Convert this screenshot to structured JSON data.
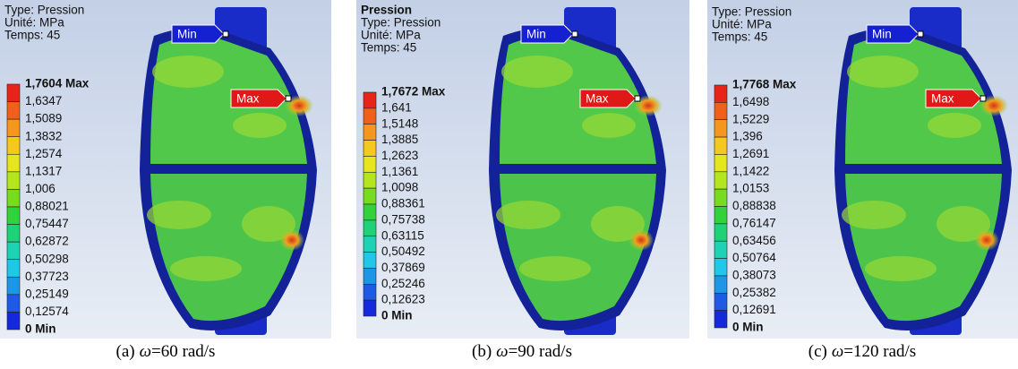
{
  "panels": [
    {
      "header": [
        "Type: Pression",
        "Unité: MPa",
        "Temps: 45"
      ],
      "legend": [
        "1,7604 Max",
        "1,6347",
        "1,5089",
        "1,3832",
        "1,2574",
        "1,1317",
        "1,006",
        "0,88021",
        "0,75447",
        "0,62872",
        "0,50298",
        "0,37723",
        "0,25149",
        "0,12574",
        "0 Min"
      ],
      "tags": {
        "min": "Min",
        "max": "Max"
      },
      "caption": {
        "label": "(a)",
        "symbol": "ω",
        "text": "=60 rad/s"
      }
    },
    {
      "title": "Pression",
      "header": [
        "Type: Pression",
        "Unité: MPa",
        "Temps: 45"
      ],
      "legend": [
        "1,7672 Max",
        "1,641",
        "1,5148",
        "1,3885",
        "1,2623",
        "1,1361",
        "1,0098",
        "0,88361",
        "0,75738",
        "0,63115",
        "0,50492",
        "0,37869",
        "0,25246",
        "0,12623",
        "0 Min"
      ],
      "tags": {
        "min": "Min",
        "max": "Max"
      },
      "caption": {
        "label": "(b)",
        "symbol": "ω",
        "text": "=90 rad/s"
      }
    },
    {
      "header": [
        "Type: Pression",
        "Unité: MPa",
        "Temps: 45"
      ],
      "legend": [
        "1,7768 Max",
        "1,6498",
        "1,5229",
        "1,396",
        "1,2691",
        "1,1422",
        "1,0153",
        "0,88838",
        "0,76147",
        "0,63456",
        "0,50764",
        "0,38073",
        "0,25382",
        "0,12691",
        "0 Min"
      ],
      "tags": {
        "min": "Min",
        "max": "Max"
      },
      "caption": {
        "label": "(c)",
        "symbol": "ω",
        "text": "=120 rad/s"
      }
    }
  ]
}
